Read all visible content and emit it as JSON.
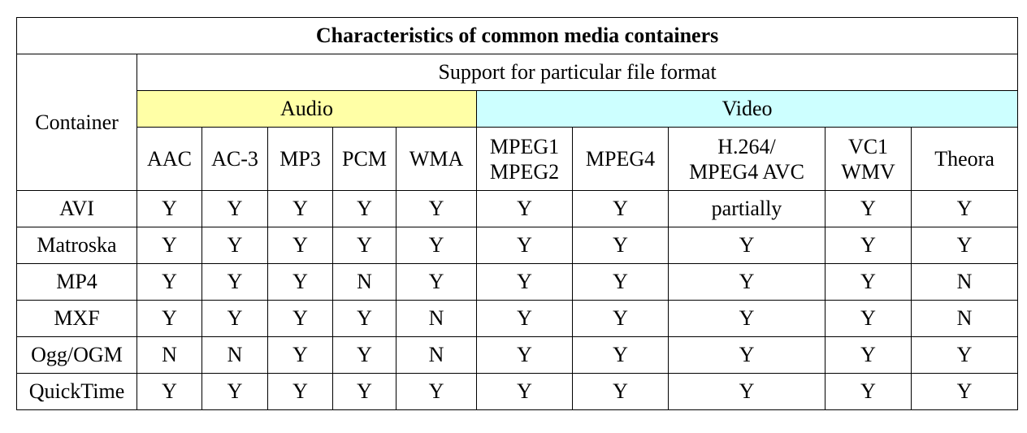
{
  "table": {
    "title": "Characteristics of common media containers",
    "container_header": "Container",
    "super_header": "Support for particular file format",
    "groups": {
      "audio": "Audio",
      "video": "Video"
    },
    "formats": [
      [
        "AAC"
      ],
      [
        "AC-3"
      ],
      [
        "MP3"
      ],
      [
        "PCM"
      ],
      [
        "WMA"
      ],
      [
        "MPEG1",
        "MPEG2"
      ],
      [
        "MPEG4"
      ],
      [
        "H.264/",
        "MPEG4 AVC"
      ],
      [
        "VC1",
        "WMV"
      ],
      [
        "Theora"
      ]
    ],
    "rows": [
      {
        "container": "AVI",
        "values": [
          "Y",
          "Y",
          "Y",
          "Y",
          "Y",
          "Y",
          "Y",
          "partially",
          "Y",
          "Y"
        ]
      },
      {
        "container": "Matroska",
        "values": [
          "Y",
          "Y",
          "Y",
          "Y",
          "Y",
          "Y",
          "Y",
          "Y",
          "Y",
          "Y"
        ]
      },
      {
        "container": "MP4",
        "values": [
          "Y",
          "Y",
          "Y",
          "N",
          "Y",
          "Y",
          "Y",
          "Y",
          "Y",
          "N"
        ]
      },
      {
        "container": "MXF",
        "values": [
          "Y",
          "Y",
          "Y",
          "Y",
          "N",
          "Y",
          "Y",
          "Y",
          "Y",
          "N"
        ]
      },
      {
        "container": "Ogg/OGM",
        "values": [
          "N",
          "N",
          "Y",
          "Y",
          "N",
          "Y",
          "Y",
          "Y",
          "Y",
          "Y"
        ]
      },
      {
        "container": "QuickTime",
        "values": [
          "Y",
          "Y",
          "Y",
          "Y",
          "Y",
          "Y",
          "Y",
          "Y",
          "Y",
          "Y"
        ]
      }
    ],
    "colors": {
      "audio_bg": "#ffffa6",
      "video_bg": "#cdffff",
      "border": "#000000"
    }
  }
}
